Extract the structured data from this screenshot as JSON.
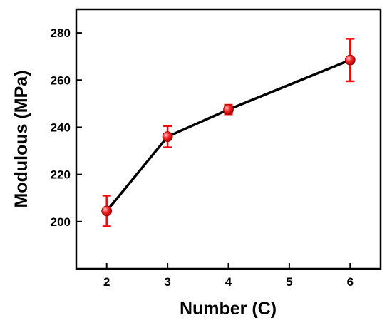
{
  "chart_data": {
    "type": "line",
    "xlabel": "Number (C)",
    "ylabel": "Modulous (MPa)",
    "xlim": [
      1.5,
      6.5
    ],
    "ylim": [
      180,
      290
    ],
    "xticks": [
      2,
      3,
      4,
      5,
      6
    ],
    "yticks": [
      200,
      220,
      240,
      260,
      280
    ],
    "grid": false,
    "series": [
      {
        "x": [
          2,
          3,
          4,
          6
        ],
        "y": [
          204.5,
          236,
          247.5,
          268.5
        ],
        "yerr": [
          6.5,
          4.5,
          2,
          9
        ],
        "line_color": "#000000",
        "marker_color": "#ff0000"
      }
    ]
  }
}
